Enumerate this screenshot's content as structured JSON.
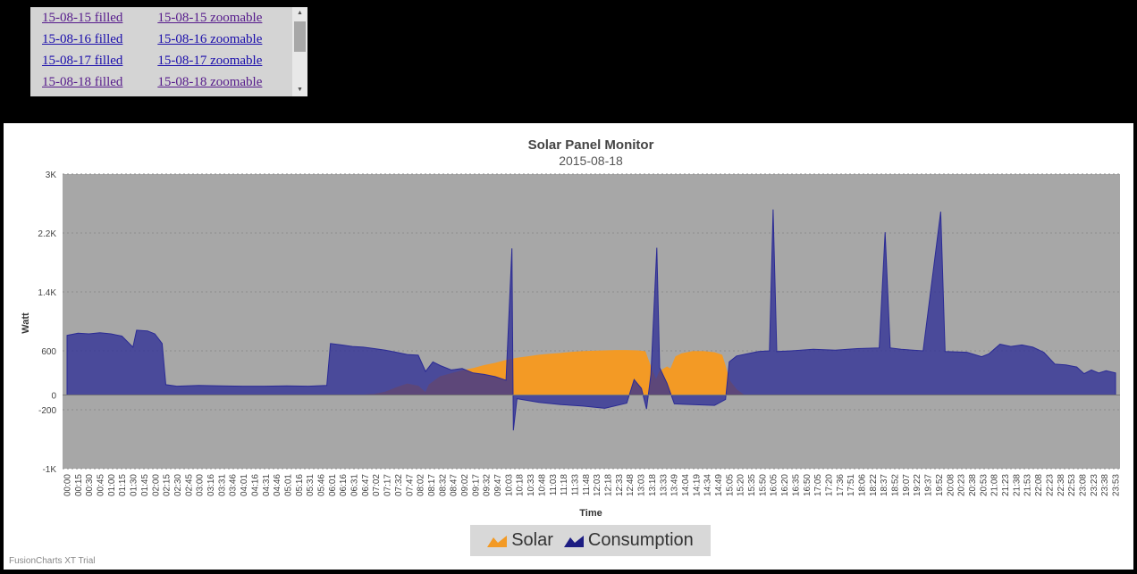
{
  "links": [
    {
      "filled": "15-08-15 filled",
      "zoomable": "15-08-15 zoomable"
    },
    {
      "filled": "15-08-16 filled",
      "zoomable": "15-08-16 zoomable"
    },
    {
      "filled": "15-08-17 filled",
      "zoomable": "15-08-17 zoomable"
    },
    {
      "filled": "15-08-18 filled",
      "zoomable": "15-08-18 zoomable"
    }
  ],
  "scroll_icons": {
    "up": "arrow-up-icon",
    "down": "arrow-down-icon"
  },
  "chart_data": {
    "type": "area",
    "title": "Solar Panel Monitor",
    "subtitle": "2015-08-18",
    "xlabel": "Time",
    "ylabel": "Watt",
    "ylim": [
      -1000,
      3000
    ],
    "y_ticks": [
      "3K",
      "2.2K",
      "1.4K",
      "600",
      "0",
      "-200",
      "-1K"
    ],
    "y_tick_values": [
      3000,
      2200,
      1400,
      600,
      0,
      -200,
      -1000
    ],
    "categories": [
      "00:00",
      "00:15",
      "00:30",
      "00:45",
      "01:00",
      "01:15",
      "01:30",
      "01:45",
      "02:00",
      "02:15",
      "02:30",
      "02:45",
      "03:00",
      "03:16",
      "03:31",
      "03:46",
      "04:01",
      "04:16",
      "04:31",
      "04:46",
      "05:01",
      "05:16",
      "05:31",
      "05:46",
      "06:01",
      "06:16",
      "06:31",
      "06:47",
      "07:02",
      "07:17",
      "07:32",
      "07:47",
      "08:02",
      "08:17",
      "08:32",
      "08:47",
      "09:02",
      "09:17",
      "09:32",
      "09:47",
      "10:03",
      "10:18",
      "10:33",
      "10:48",
      "11:03",
      "11:18",
      "11:33",
      "11:48",
      "12:03",
      "12:18",
      "12:33",
      "12:48",
      "13:03",
      "13:18",
      "13:33",
      "13:49",
      "14:04",
      "14:19",
      "14:34",
      "14:49",
      "15:05",
      "15:20",
      "15:35",
      "15:50",
      "16:05",
      "16:20",
      "16:35",
      "16:50",
      "17:05",
      "17:20",
      "17:36",
      "17:51",
      "18:06",
      "18:22",
      "18:37",
      "18:52",
      "19:07",
      "19:22",
      "19:37",
      "19:52",
      "20:08",
      "20:23",
      "20:38",
      "20:53",
      "21:08",
      "21:23",
      "21:38",
      "21:53",
      "22:08",
      "22:23",
      "22:38",
      "22:53",
      "23:08",
      "23:23",
      "23:38",
      "23:53"
    ],
    "grid": true,
    "legend_position": "bottom",
    "series": [
      {
        "name": "Solar",
        "color": "#f39a25",
        "points": [
          [
            "00:00",
            0
          ],
          [
            "06:45",
            0
          ],
          [
            "07:00",
            10
          ],
          [
            "07:15",
            40
          ],
          [
            "07:30",
            100
          ],
          [
            "07:45",
            150
          ],
          [
            "08:00",
            120
          ],
          [
            "08:10",
            30
          ],
          [
            "08:15",
            140
          ],
          [
            "08:30",
            250
          ],
          [
            "08:45",
            290
          ],
          [
            "09:00",
            330
          ],
          [
            "09:15",
            360
          ],
          [
            "09:30",
            400
          ],
          [
            "09:45",
            430
          ],
          [
            "10:00",
            470
          ],
          [
            "10:15",
            500
          ],
          [
            "10:30",
            520
          ],
          [
            "10:45",
            540
          ],
          [
            "11:00",
            555
          ],
          [
            "11:15",
            565
          ],
          [
            "11:30",
            580
          ],
          [
            "11:45",
            590
          ],
          [
            "12:00",
            595
          ],
          [
            "12:15",
            600
          ],
          [
            "12:30",
            605
          ],
          [
            "12:45",
            605
          ],
          [
            "13:00",
            600
          ],
          [
            "13:10",
            590
          ],
          [
            "13:20",
            320
          ],
          [
            "13:25",
            200
          ],
          [
            "13:30",
            320
          ],
          [
            "13:40",
            380
          ],
          [
            "13:45",
            350
          ],
          [
            "13:52",
            520
          ],
          [
            "14:00",
            560
          ],
          [
            "14:15",
            590
          ],
          [
            "14:30",
            590
          ],
          [
            "14:45",
            575
          ],
          [
            "14:55",
            540
          ],
          [
            "15:00",
            380
          ],
          [
            "15:05",
            200
          ],
          [
            "15:15",
            70
          ],
          [
            "15:25",
            0
          ],
          [
            "23:59",
            0
          ]
        ]
      },
      {
        "name": "Consumption",
        "color": "#2b2b95",
        "points": [
          [
            "00:00",
            810
          ],
          [
            "00:15",
            840
          ],
          [
            "00:30",
            830
          ],
          [
            "00:45",
            845
          ],
          [
            "01:00",
            830
          ],
          [
            "01:15",
            800
          ],
          [
            "01:30",
            650
          ],
          [
            "01:35",
            880
          ],
          [
            "01:50",
            870
          ],
          [
            "02:00",
            830
          ],
          [
            "02:10",
            700
          ],
          [
            "02:15",
            140
          ],
          [
            "02:30",
            120
          ],
          [
            "03:00",
            130
          ],
          [
            "03:30",
            125
          ],
          [
            "04:00",
            120
          ],
          [
            "04:30",
            120
          ],
          [
            "05:00",
            125
          ],
          [
            "05:30",
            120
          ],
          [
            "05:55",
            130
          ],
          [
            "06:00",
            700
          ],
          [
            "06:15",
            680
          ],
          [
            "06:30",
            660
          ],
          [
            "06:45",
            650
          ],
          [
            "07:00",
            630
          ],
          [
            "07:15",
            610
          ],
          [
            "07:30",
            580
          ],
          [
            "07:45",
            550
          ],
          [
            "08:00",
            540
          ],
          [
            "08:10",
            320
          ],
          [
            "08:20",
            450
          ],
          [
            "08:30",
            400
          ],
          [
            "08:45",
            340
          ],
          [
            "09:00",
            360
          ],
          [
            "09:15",
            300
          ],
          [
            "09:30",
            280
          ],
          [
            "09:45",
            250
          ],
          [
            "10:00",
            200
          ],
          [
            "10:08",
            1990
          ],
          [
            "10:10",
            -480
          ],
          [
            "10:15",
            -50
          ],
          [
            "10:45",
            -100
          ],
          [
            "11:15",
            -130
          ],
          [
            "11:45",
            -150
          ],
          [
            "12:15",
            -180
          ],
          [
            "12:45",
            -110
          ],
          [
            "12:55",
            210
          ],
          [
            "13:05",
            90
          ],
          [
            "13:12",
            -190
          ],
          [
            "13:18",
            280
          ],
          [
            "13:26",
            2000
          ],
          [
            "13:30",
            370
          ],
          [
            "13:40",
            160
          ],
          [
            "13:50",
            -120
          ],
          [
            "14:15",
            -130
          ],
          [
            "14:45",
            -140
          ],
          [
            "15:00",
            -60
          ],
          [
            "15:05",
            450
          ],
          [
            "15:15",
            530
          ],
          [
            "15:30",
            560
          ],
          [
            "15:45",
            590
          ],
          [
            "16:00",
            600
          ],
          [
            "16:05",
            2520
          ],
          [
            "16:10",
            590
          ],
          [
            "16:30",
            600
          ],
          [
            "17:00",
            620
          ],
          [
            "17:30",
            610
          ],
          [
            "18:00",
            630
          ],
          [
            "18:30",
            640
          ],
          [
            "18:38",
            2210
          ],
          [
            "18:45",
            640
          ],
          [
            "19:00",
            620
          ],
          [
            "19:30",
            600
          ],
          [
            "19:54",
            2490
          ],
          [
            "20:00",
            590
          ],
          [
            "20:30",
            580
          ],
          [
            "20:50",
            520
          ],
          [
            "21:00",
            560
          ],
          [
            "21:15",
            690
          ],
          [
            "21:30",
            660
          ],
          [
            "21:45",
            680
          ],
          [
            "22:00",
            650
          ],
          [
            "22:15",
            580
          ],
          [
            "22:30",
            420
          ],
          [
            "22:45",
            410
          ],
          [
            "23:00",
            380
          ],
          [
            "23:10",
            290
          ],
          [
            "23:20",
            340
          ],
          [
            "23:30",
            300
          ],
          [
            "23:40",
            330
          ],
          [
            "23:53",
            300
          ]
        ]
      }
    ]
  },
  "legend": {
    "solar_label": "Solar",
    "consumption_label": "Consumption"
  },
  "credit": "FusionCharts XT Trial"
}
